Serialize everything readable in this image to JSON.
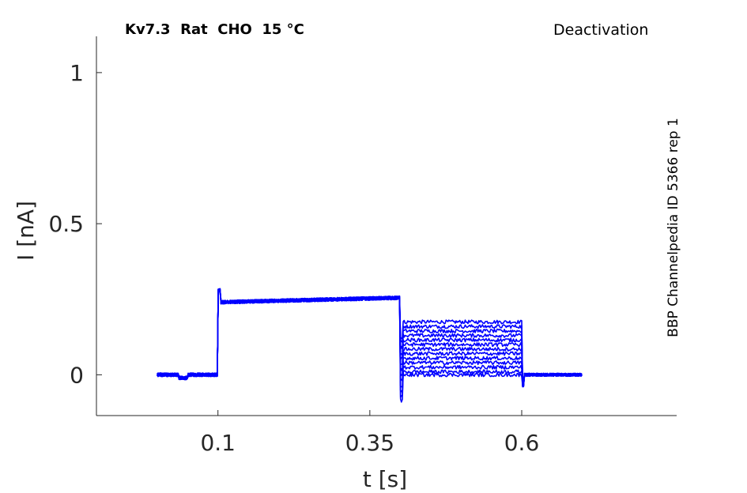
{
  "chart_data": {
    "type": "line",
    "title": "Kv7.3  Rat  CHO  15 °C",
    "protocol_label": "Deactivation",
    "side_label": "BBP Channelpedia ID 5366 rep 1",
    "xlabel": "t [s]",
    "ylabel": "I [nA]",
    "xlim": [
      -0.1,
      0.855
    ],
    "ylim": [
      -0.135,
      1.12
    ],
    "xticks": [
      0.1,
      0.35,
      0.6
    ],
    "xtick_labels": [
      "0.1",
      "0.35",
      "0.6"
    ],
    "yticks": [
      0,
      0.5,
      1
    ],
    "ytick_labels": [
      "0",
      "0.5",
      "1"
    ],
    "grid": false,
    "line_color": "#0000ff",
    "protocol": {
      "start": 0.0,
      "activation_start": 0.1,
      "activation_level": 0.24,
      "activation_end_level": 0.255,
      "step_start": 0.4,
      "step_end": 0.6,
      "end": 0.7,
      "baseline": 0.0
    },
    "series_levels": [
      0.175,
      0.16,
      0.145,
      0.13,
      0.115,
      0.1,
      0.085,
      0.07,
      0.055,
      0.04,
      0.025,
      0.01,
      0.0
    ]
  }
}
